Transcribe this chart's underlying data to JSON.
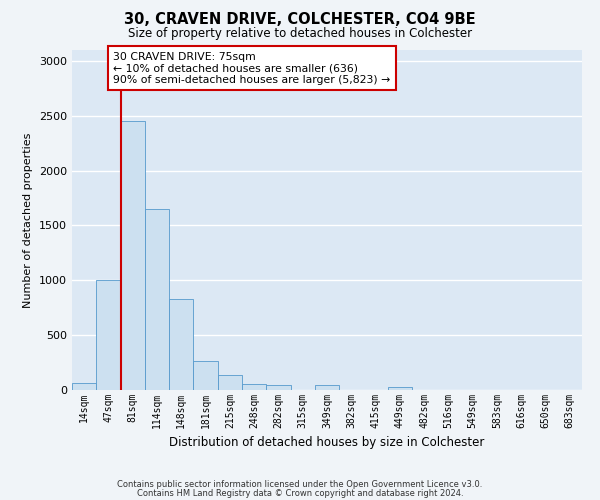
{
  "title": "30, CRAVEN DRIVE, COLCHESTER, CO4 9BE",
  "subtitle": "Size of property relative to detached houses in Colchester",
  "xlabel": "Distribution of detached houses by size in Colchester",
  "ylabel": "Number of detached properties",
  "bin_labels": [
    "14sqm",
    "47sqm",
    "81sqm",
    "114sqm",
    "148sqm",
    "181sqm",
    "215sqm",
    "248sqm",
    "282sqm",
    "315sqm",
    "349sqm",
    "382sqm",
    "415sqm",
    "449sqm",
    "482sqm",
    "516sqm",
    "549sqm",
    "583sqm",
    "616sqm",
    "650sqm",
    "683sqm"
  ],
  "bar_heights": [
    60,
    1000,
    2450,
    1650,
    830,
    265,
    135,
    55,
    50,
    0,
    45,
    0,
    0,
    30,
    0,
    0,
    0,
    0,
    0,
    0,
    0
  ],
  "bar_color": "#cce0f0",
  "bar_edgecolor": "#5599cc",
  "vline_index": 2,
  "highlight_color": "#cc0000",
  "annotation_text": "30 CRAVEN DRIVE: 75sqm\n← 10% of detached houses are smaller (636)\n90% of semi-detached houses are larger (5,823) →",
  "annotation_box_color": "#ffffff",
  "annotation_border_color": "#cc0000",
  "ylim": [
    0,
    3100
  ],
  "yticks": [
    0,
    500,
    1000,
    1500,
    2000,
    2500,
    3000
  ],
  "fig_bg": "#f0f4f8",
  "ax_bg": "#dce8f4",
  "grid_color": "#ffffff",
  "footnote_line1": "Contains HM Land Registry data © Crown copyright and database right 2024.",
  "footnote_line2": "Contains public sector information licensed under the Open Government Licence v3.0."
}
